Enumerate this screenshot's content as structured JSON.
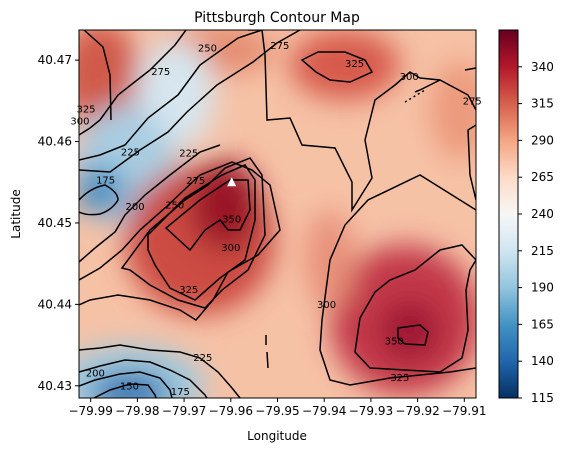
{
  "chart_data": {
    "type": "heatmap",
    "title": "Pittsburgh Contour Map",
    "xlabel": "Longitude",
    "ylabel": "Latitude",
    "xlim": [
      -79.9925,
      -79.9075
    ],
    "ylim": [
      40.4285,
      40.4737
    ],
    "x_ticks": [
      -79.99,
      -79.98,
      -79.97,
      -79.96,
      -79.95,
      -79.94,
      -79.93,
      -79.92,
      -79.91
    ],
    "x_tick_labels": [
      "−79.99",
      "−79.98",
      "−79.97",
      "−79.96",
      "−79.95",
      "−79.94",
      "−79.93",
      "−79.92",
      "−79.91"
    ],
    "y_ticks": [
      40.43,
      40.44,
      40.45,
      40.46,
      40.47
    ],
    "y_tick_labels": [
      "40.43",
      "40.44",
      "40.45",
      "40.46",
      "40.47"
    ],
    "colorbar": {
      "colormap": "RdBu_r",
      "range": [
        115,
        365
      ],
      "ticks": [
        115,
        140,
        165,
        190,
        215,
        240,
        265,
        290,
        315,
        340
      ],
      "tick_labels": [
        "115",
        "140",
        "165",
        "190",
        "215",
        "240",
        "265",
        "290",
        "315",
        "340"
      ]
    },
    "contour_levels": [
      150,
      175,
      200,
      225,
      250,
      275,
      300,
      325,
      350
    ],
    "contour_labels": [
      {
        "text": "250",
        "x": -79.965,
        "y": 40.4715
      },
      {
        "text": "275",
        "x": -79.975,
        "y": 40.4686
      },
      {
        "text": "275",
        "x": -79.9495,
        "y": 40.4718
      },
      {
        "text": "325",
        "x": -79.9335,
        "y": 40.4696
      },
      {
        "text": "300",
        "x": -79.9218,
        "y": 40.468
      },
      {
        "text": "275",
        "x": -79.9083,
        "y": 40.465
      },
      {
        "text": "325",
        "x": -79.991,
        "y": 40.464
      },
      {
        "text": "300",
        "x": -79.9923,
        "y": 40.4625
      },
      {
        "text": "225",
        "x": -79.9815,
        "y": 40.4587
      },
      {
        "text": "225",
        "x": -79.969,
        "y": 40.4586
      },
      {
        "text": "175",
        "x": -79.9868,
        "y": 40.4553
      },
      {
        "text": "275",
        "x": -79.9675,
        "y": 40.4552
      },
      {
        "text": "200",
        "x": -79.9805,
        "y": 40.452
      },
      {
        "text": "250",
        "x": -79.972,
        "y": 40.4522
      },
      {
        "text": "350",
        "x": -79.9598,
        "y": 40.4505
      },
      {
        "text": "300",
        "x": -79.96,
        "y": 40.447
      },
      {
        "text": "325",
        "x": -79.969,
        "y": 40.4418
      },
      {
        "text": "300",
        "x": -79.9395,
        "y": 40.44
      },
      {
        "text": "350",
        "x": -79.925,
        "y": 40.4355
      },
      {
        "text": "225",
        "x": -79.966,
        "y": 40.4335
      },
      {
        "text": "200",
        "x": -79.989,
        "y": 40.4316
      },
      {
        "text": "150",
        "x": -79.9817,
        "y": 40.43
      },
      {
        "text": "175",
        "x": -79.9708,
        "y": 40.4293
      },
      {
        "text": "325",
        "x": -79.9238,
        "y": 40.431
      }
    ],
    "marker": {
      "shape": "triangle",
      "color": "#ffffff",
      "x": -79.9598,
      "y": 40.455
    }
  }
}
